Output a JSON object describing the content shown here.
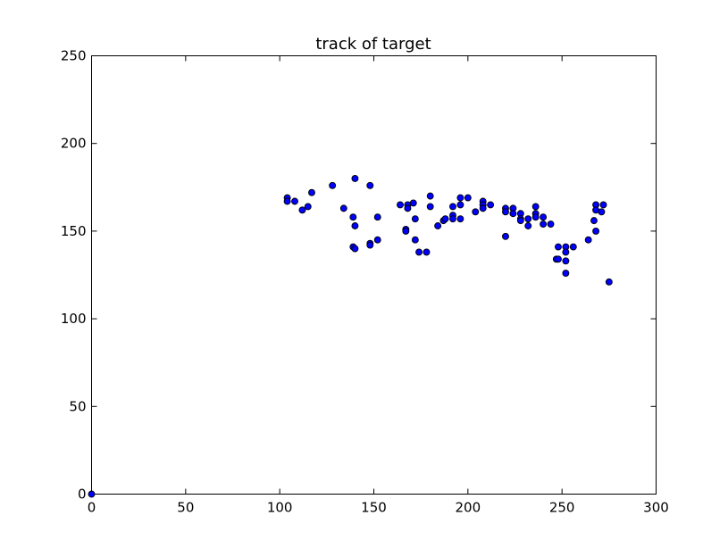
{
  "chart_data": {
    "type": "scatter",
    "title": "track of target",
    "xlabel": "",
    "ylabel": "",
    "xlim": [
      0,
      300
    ],
    "ylim": [
      0,
      250
    ],
    "x_ticks": [
      0,
      50,
      100,
      150,
      200,
      250,
      300
    ],
    "y_ticks": [
      0,
      50,
      100,
      150,
      200,
      250
    ],
    "grid": false,
    "marker_color": "#0000ff",
    "series": [
      {
        "points": [
          [
            0,
            0
          ],
          [
            104,
            169
          ],
          [
            104,
            167
          ],
          [
            108,
            167
          ],
          [
            112,
            162
          ],
          [
            115,
            164
          ],
          [
            117,
            172
          ],
          [
            128,
            176
          ],
          [
            134,
            163
          ],
          [
            139,
            158
          ],
          [
            139,
            141
          ],
          [
            140,
            180
          ],
          [
            140,
            153
          ],
          [
            140,
            140
          ],
          [
            148,
            176
          ],
          [
            148,
            143
          ],
          [
            148,
            142
          ],
          [
            152,
            158
          ],
          [
            152,
            145
          ],
          [
            164,
            165
          ],
          [
            167,
            151
          ],
          [
            167,
            150
          ],
          [
            168,
            165
          ],
          [
            168,
            163
          ],
          [
            171,
            166
          ],
          [
            172,
            157
          ],
          [
            172,
            145
          ],
          [
            174,
            138
          ],
          [
            178,
            138
          ],
          [
            180,
            170
          ],
          [
            180,
            164
          ],
          [
            184,
            153
          ],
          [
            187,
            156
          ],
          [
            188,
            157
          ],
          [
            192,
            164
          ],
          [
            192,
            159
          ],
          [
            192,
            157
          ],
          [
            196,
            169
          ],
          [
            196,
            165
          ],
          [
            196,
            157
          ],
          [
            200,
            169
          ],
          [
            204,
            161
          ],
          [
            208,
            167
          ],
          [
            208,
            165
          ],
          [
            208,
            163
          ],
          [
            212,
            165
          ],
          [
            220,
            163
          ],
          [
            220,
            161
          ],
          [
            220,
            147
          ],
          [
            224,
            163
          ],
          [
            224,
            160
          ],
          [
            228,
            160
          ],
          [
            228,
            157
          ],
          [
            228,
            156
          ],
          [
            232,
            157
          ],
          [
            232,
            153
          ],
          [
            236,
            164
          ],
          [
            236,
            160
          ],
          [
            236,
            158
          ],
          [
            240,
            158
          ],
          [
            240,
            154
          ],
          [
            244,
            154
          ],
          [
            247,
            134
          ],
          [
            248,
            141
          ],
          [
            248,
            134
          ],
          [
            252,
            141
          ],
          [
            252,
            138
          ],
          [
            252,
            133
          ],
          [
            252,
            126
          ],
          [
            256,
            141
          ],
          [
            264,
            145
          ],
          [
            267,
            156
          ],
          [
            268,
            165
          ],
          [
            268,
            162
          ],
          [
            268,
            150
          ],
          [
            271,
            161
          ],
          [
            272,
            165
          ],
          [
            275,
            121
          ]
        ]
      }
    ]
  }
}
